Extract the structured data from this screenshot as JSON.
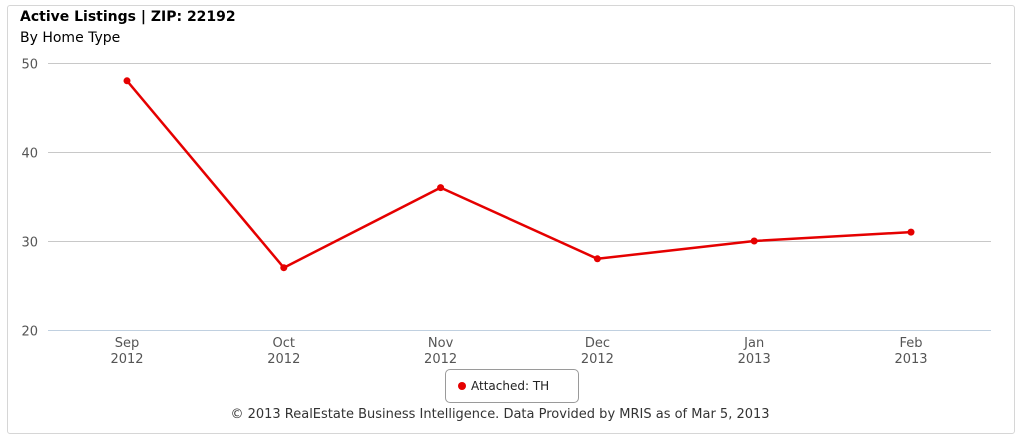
{
  "chart_data": {
    "type": "line",
    "title": "Active Listings | ZIP: 22192",
    "subtitle": "By Home Type",
    "categories": [
      [
        "Sep",
        "2012"
      ],
      [
        "Oct",
        "2012"
      ],
      [
        "Nov",
        "2012"
      ],
      [
        "Dec",
        "2012"
      ],
      [
        "Jan",
        "2013"
      ],
      [
        "Feb",
        "2013"
      ]
    ],
    "series": [
      {
        "name": "Attached: TH",
        "color": "#e50000",
        "values": [
          48,
          27,
          36,
          28,
          30,
          31
        ]
      }
    ],
    "ylim": [
      20,
      50
    ],
    "yticks": [
      20,
      30,
      40,
      50
    ],
    "grid": true,
    "legend_position": "bottom-center",
    "credits": "© 2013 RealEstate Business Intelligence. Data Provided by MRIS as of Mar 5, 2013"
  }
}
